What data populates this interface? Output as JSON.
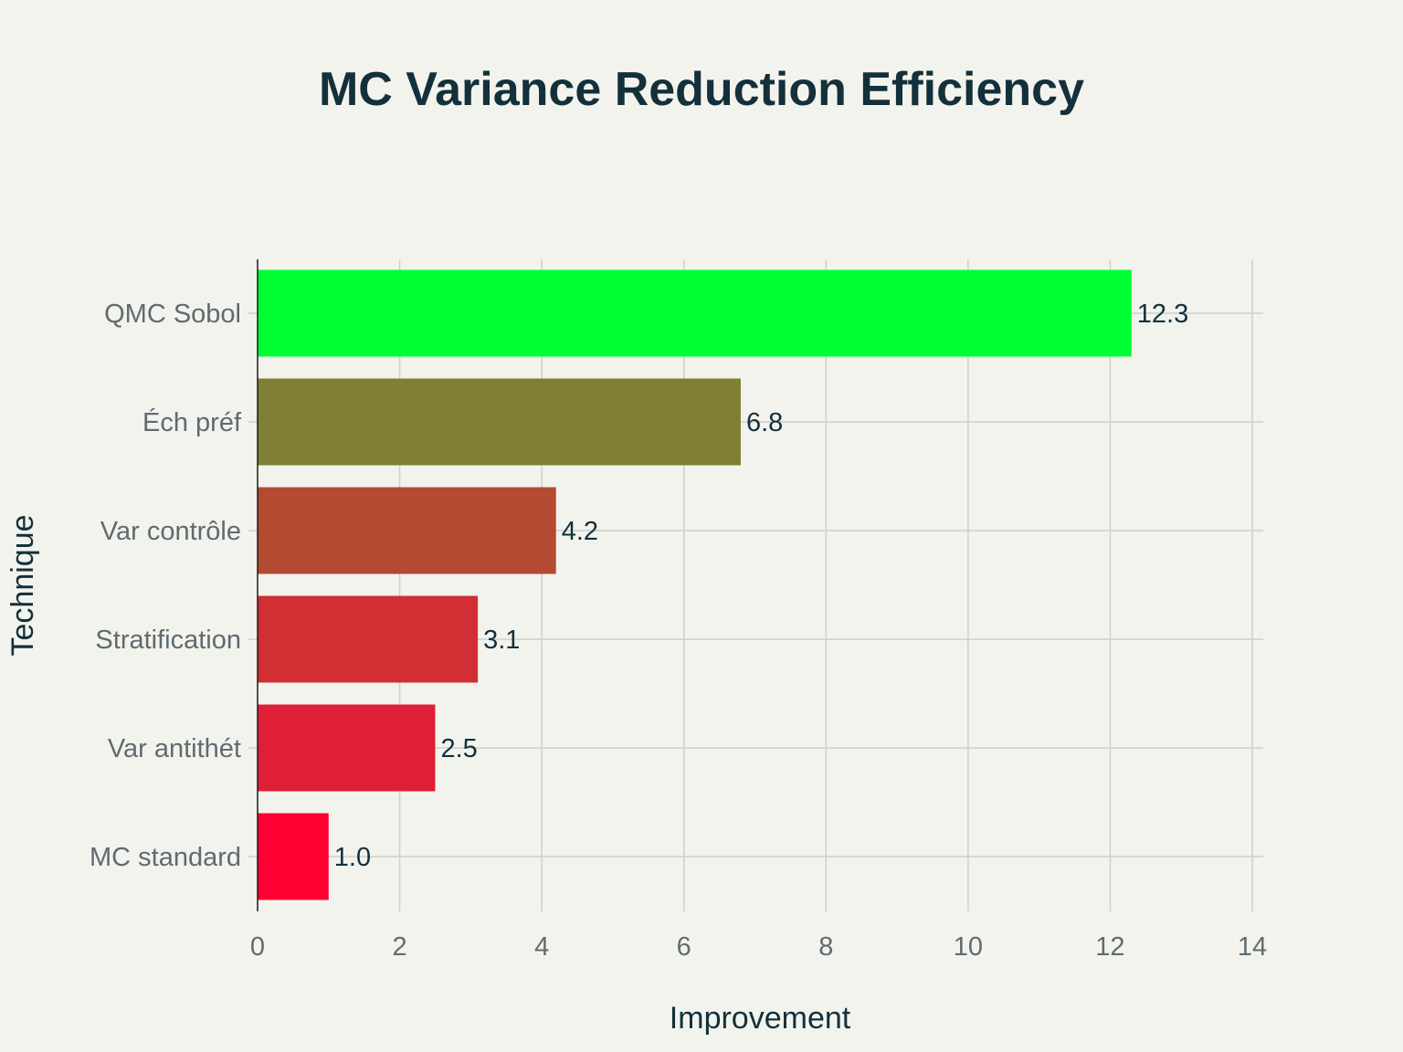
{
  "chart_data": {
    "type": "bar",
    "orientation": "horizontal",
    "title": "MC Variance Reduction Efficiency",
    "xlabel": "Improvement",
    "ylabel": "Technique",
    "xlim": [
      0,
      14
    ],
    "xticks": [
      0,
      2,
      4,
      6,
      8,
      10,
      12,
      14
    ],
    "grid": true,
    "legend": "none",
    "categories": [
      "QMC Sobol",
      "Éch préf",
      "Var contrôle",
      "Stratification",
      "Var antithét",
      "MC standard"
    ],
    "values": [
      12.3,
      6.8,
      4.2,
      3.1,
      2.5,
      1.0
    ],
    "value_labels": [
      "12.3",
      "6.8",
      "4.2",
      "3.1",
      "2.5",
      "1.0"
    ],
    "colors": [
      "#00ff33",
      "#7f8033",
      "#b34a32",
      "#d12f33",
      "#de1f35",
      "#ff0033"
    ]
  }
}
